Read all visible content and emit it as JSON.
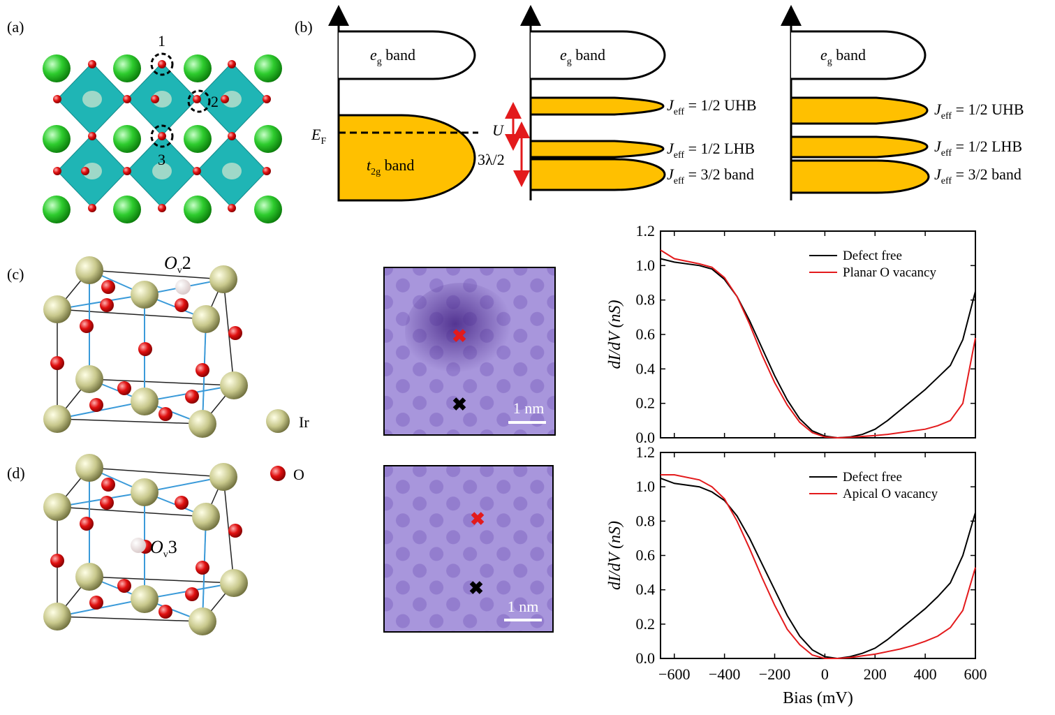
{
  "panel_labels": [
    "(a)",
    "(b)",
    "(c)",
    "(d)"
  ],
  "panel_a": {
    "site_labels": [
      "1",
      "2",
      "3"
    ]
  },
  "panel_b": {
    "eg_band": {
      "main": "e",
      "sub": "g",
      "rest": " band"
    },
    "t2g_band": {
      "main": "t",
      "sub": "2g",
      "rest": " band"
    },
    "fermi": {
      "main": "E",
      "sub": "F",
      "rest": ""
    },
    "U": "U",
    "soc": "3λ/2",
    "uhb": {
      "main": "J",
      "sub": "eff",
      "rest": " = 1/2 UHB"
    },
    "lhb": {
      "main": "J",
      "sub": "eff",
      "rest": " = 1/2 LHB"
    },
    "j32": {
      "main": "J",
      "sub": "eff",
      "rest": " = 3/2 band"
    }
  },
  "structure": {
    "ov2": {
      "main": "O",
      "sub": "v",
      "rest": "2"
    },
    "ov3": {
      "main": "O",
      "sub": "v",
      "rest": "3"
    },
    "legend": [
      "Ir",
      "O"
    ]
  },
  "stm": {
    "scale_bars": [
      "1 nm",
      "1 nm"
    ]
  },
  "chart_data": [
    {
      "type": "line",
      "ylabel": "dI/dV (nS)",
      "x": [
        -655,
        -600,
        -500,
        -450,
        -400,
        -350,
        -300,
        -250,
        -200,
        -150,
        -100,
        -50,
        0,
        50,
        100,
        150,
        200,
        250,
        300,
        350,
        400,
        450,
        500,
        550,
        600
      ],
      "series": [
        {
          "name": "Defect free",
          "color": "#000000",
          "values": [
            1.04,
            1.02,
            1.0,
            0.98,
            0.92,
            0.82,
            0.68,
            0.52,
            0.36,
            0.22,
            0.11,
            0.04,
            0.01,
            0.0,
            0.005,
            0.02,
            0.05,
            0.1,
            0.16,
            0.22,
            0.28,
            0.35,
            0.42,
            0.57,
            0.85
          ]
        },
        {
          "name": "Planar O vacancy",
          "color": "#e31a1c",
          "values": [
            1.09,
            1.04,
            1.01,
            0.99,
            0.93,
            0.82,
            0.66,
            0.48,
            0.32,
            0.19,
            0.09,
            0.03,
            0.005,
            0.0,
            0.003,
            0.008,
            0.013,
            0.02,
            0.03,
            0.04,
            0.05,
            0.07,
            0.1,
            0.2,
            0.58
          ]
        }
      ],
      "xlim": [
        -655,
        600
      ],
      "ylim": [
        0,
        1.2
      ],
      "xticks": [
        -600,
        -400,
        -200,
        0,
        200,
        400,
        600
      ],
      "yticks": [
        {
          "value": 0,
          "label": "0.0"
        },
        0.2,
        0.4,
        0.6,
        0.8,
        {
          "value": 1,
          "label": "1.0"
        },
        1.2
      ],
      "legend": "upper right"
    },
    {
      "type": "line",
      "ylabel": "dI/dV (nS)",
      "xlabel": "Bias (mV)",
      "x": [
        -655,
        -600,
        -500,
        -450,
        -400,
        -350,
        -300,
        -250,
        -200,
        -150,
        -100,
        -50,
        0,
        50,
        100,
        150,
        200,
        250,
        300,
        350,
        400,
        450,
        500,
        550,
        600
      ],
      "series": [
        {
          "name": "Defect free",
          "color": "#000000",
          "values": [
            1.05,
            1.02,
            1.0,
            0.97,
            0.92,
            0.83,
            0.7,
            0.55,
            0.4,
            0.25,
            0.13,
            0.05,
            0.01,
            0.0,
            0.01,
            0.03,
            0.06,
            0.11,
            0.17,
            0.23,
            0.29,
            0.36,
            0.44,
            0.6,
            0.85
          ]
        },
        {
          "name": "Apical O vacancy",
          "color": "#e31a1c",
          "values": [
            1.07,
            1.07,
            1.04,
            1.0,
            0.93,
            0.8,
            0.64,
            0.47,
            0.31,
            0.17,
            0.08,
            0.02,
            0.0,
            0.0,
            0.005,
            0.015,
            0.025,
            0.04,
            0.055,
            0.075,
            0.1,
            0.13,
            0.18,
            0.28,
            0.53
          ]
        }
      ],
      "xlim": [
        -655,
        600
      ],
      "ylim": [
        0,
        1.2
      ],
      "xticks": [
        {
          "value": -600,
          "label": "−600"
        },
        {
          "value": -400,
          "label": "−400"
        },
        {
          "value": -200,
          "label": "−200"
        },
        0,
        200,
        400,
        600
      ],
      "yticks": [
        {
          "value": 0,
          "label": "0.0"
        },
        0.2,
        0.4,
        0.6,
        0.8,
        {
          "value": 1,
          "label": "1.0"
        },
        1.2
      ],
      "legend": "upper right"
    }
  ]
}
